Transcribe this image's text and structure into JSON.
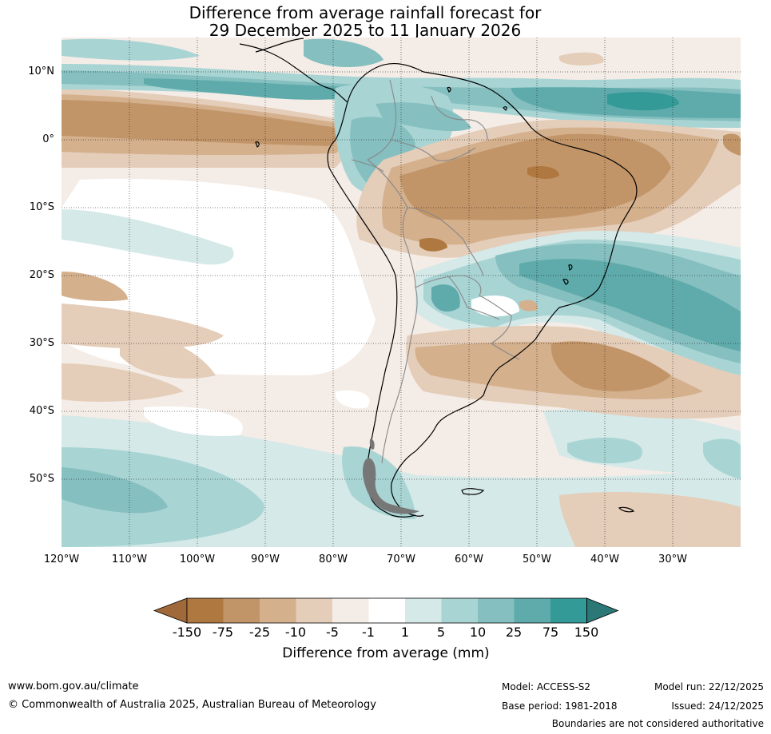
{
  "title": {
    "line1": "Difference from average rainfall forecast for",
    "line2": "29 December 2025 to 11 January 2026"
  },
  "map": {
    "lat_labels": [
      "10°N",
      "0°",
      "10°S",
      "20°S",
      "30°S",
      "40°S",
      "50°S"
    ],
    "lon_labels": [
      "120°W",
      "110°W",
      "100°W",
      "90°W",
      "80°W",
      "70°W",
      "60°W",
      "50°W",
      "40°W",
      "30°W"
    ],
    "region": "South America"
  },
  "colorbar": {
    "title": "Difference from average (mm)",
    "ticks": [
      "-150",
      "-75",
      "-25",
      "-10",
      "-5",
      "-1",
      "1",
      "5",
      "10",
      "25",
      "75",
      "150"
    ],
    "colors": [
      "#a0693a",
      "#af7840",
      "#c29569",
      "#d4b08d",
      "#e4cdb9",
      "#f4ece6",
      "#ffffff",
      "#d4e9e8",
      "#a9d4d4",
      "#85bfbf",
      "#5fabab",
      "#339a97",
      "#2b7876"
    ]
  },
  "footer": {
    "website": "www.bom.gov.au/climate",
    "copyright": "© Commonwealth of Australia 2025, Australian Bureau of Meteorology",
    "model": "Model: ACCESS-S2",
    "base_period": "Base period: 1981-2018",
    "model_run": "Model run: 22/12/2025",
    "issued": "Issued: 24/12/2025",
    "disclaimer": "Boundaries are not considered authoritative"
  }
}
